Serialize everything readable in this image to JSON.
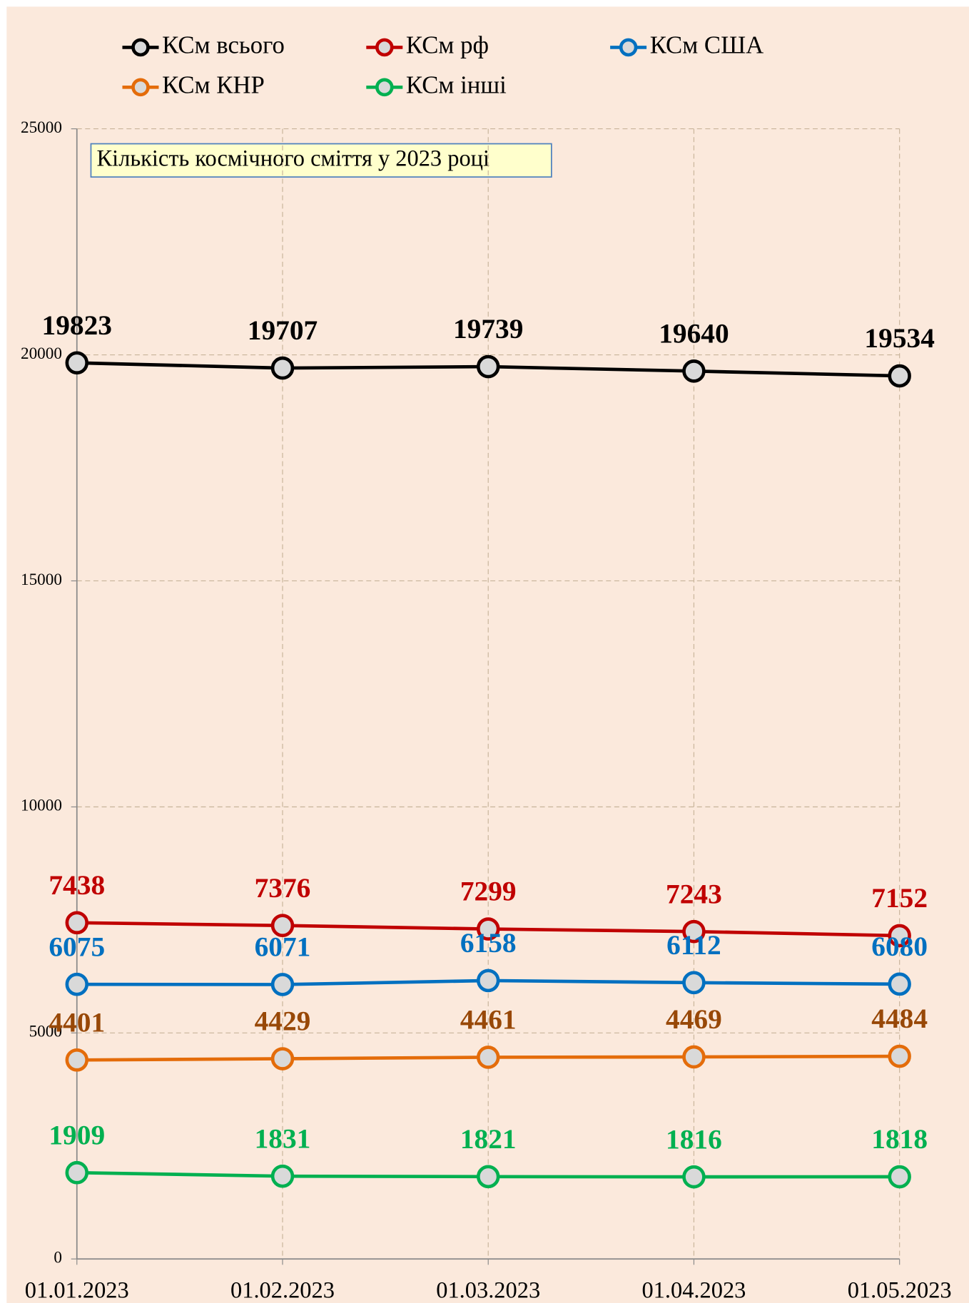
{
  "chart_data": {
    "type": "line",
    "title": "Кількість космічного сміття у 2023 році",
    "categories": [
      "01.01.2023",
      "01.02.2023",
      "01.03.2023",
      "01.04.2023",
      "01.05.2023"
    ],
    "series": [
      {
        "name": "КСм всього",
        "color": "#000000",
        "label_color": "#000000",
        "values": [
          19823,
          19707,
          19739,
          19640,
          19534
        ]
      },
      {
        "name": "КСм рф",
        "color": "#c00000",
        "label_color": "#c00000",
        "values": [
          7438,
          7376,
          7299,
          7243,
          7152
        ]
      },
      {
        "name": "КСм США",
        "color": "#0070c0",
        "label_color": "#0070c0",
        "values": [
          6075,
          6071,
          6158,
          6112,
          6080
        ]
      },
      {
        "name": "КСм КНР",
        "color": "#e46c0a",
        "label_color": "#984807",
        "values": [
          4401,
          4429,
          4461,
          4469,
          4484
        ]
      },
      {
        "name": "КСм інші",
        "color": "#00b050",
        "label_color": "#00b050",
        "values": [
          1909,
          1831,
          1821,
          1816,
          1818
        ]
      }
    ],
    "ylim": [
      0,
      25000
    ],
    "yticks": [
      0,
      5000,
      10000,
      15000,
      20000,
      25000
    ],
    "grid": true
  }
}
